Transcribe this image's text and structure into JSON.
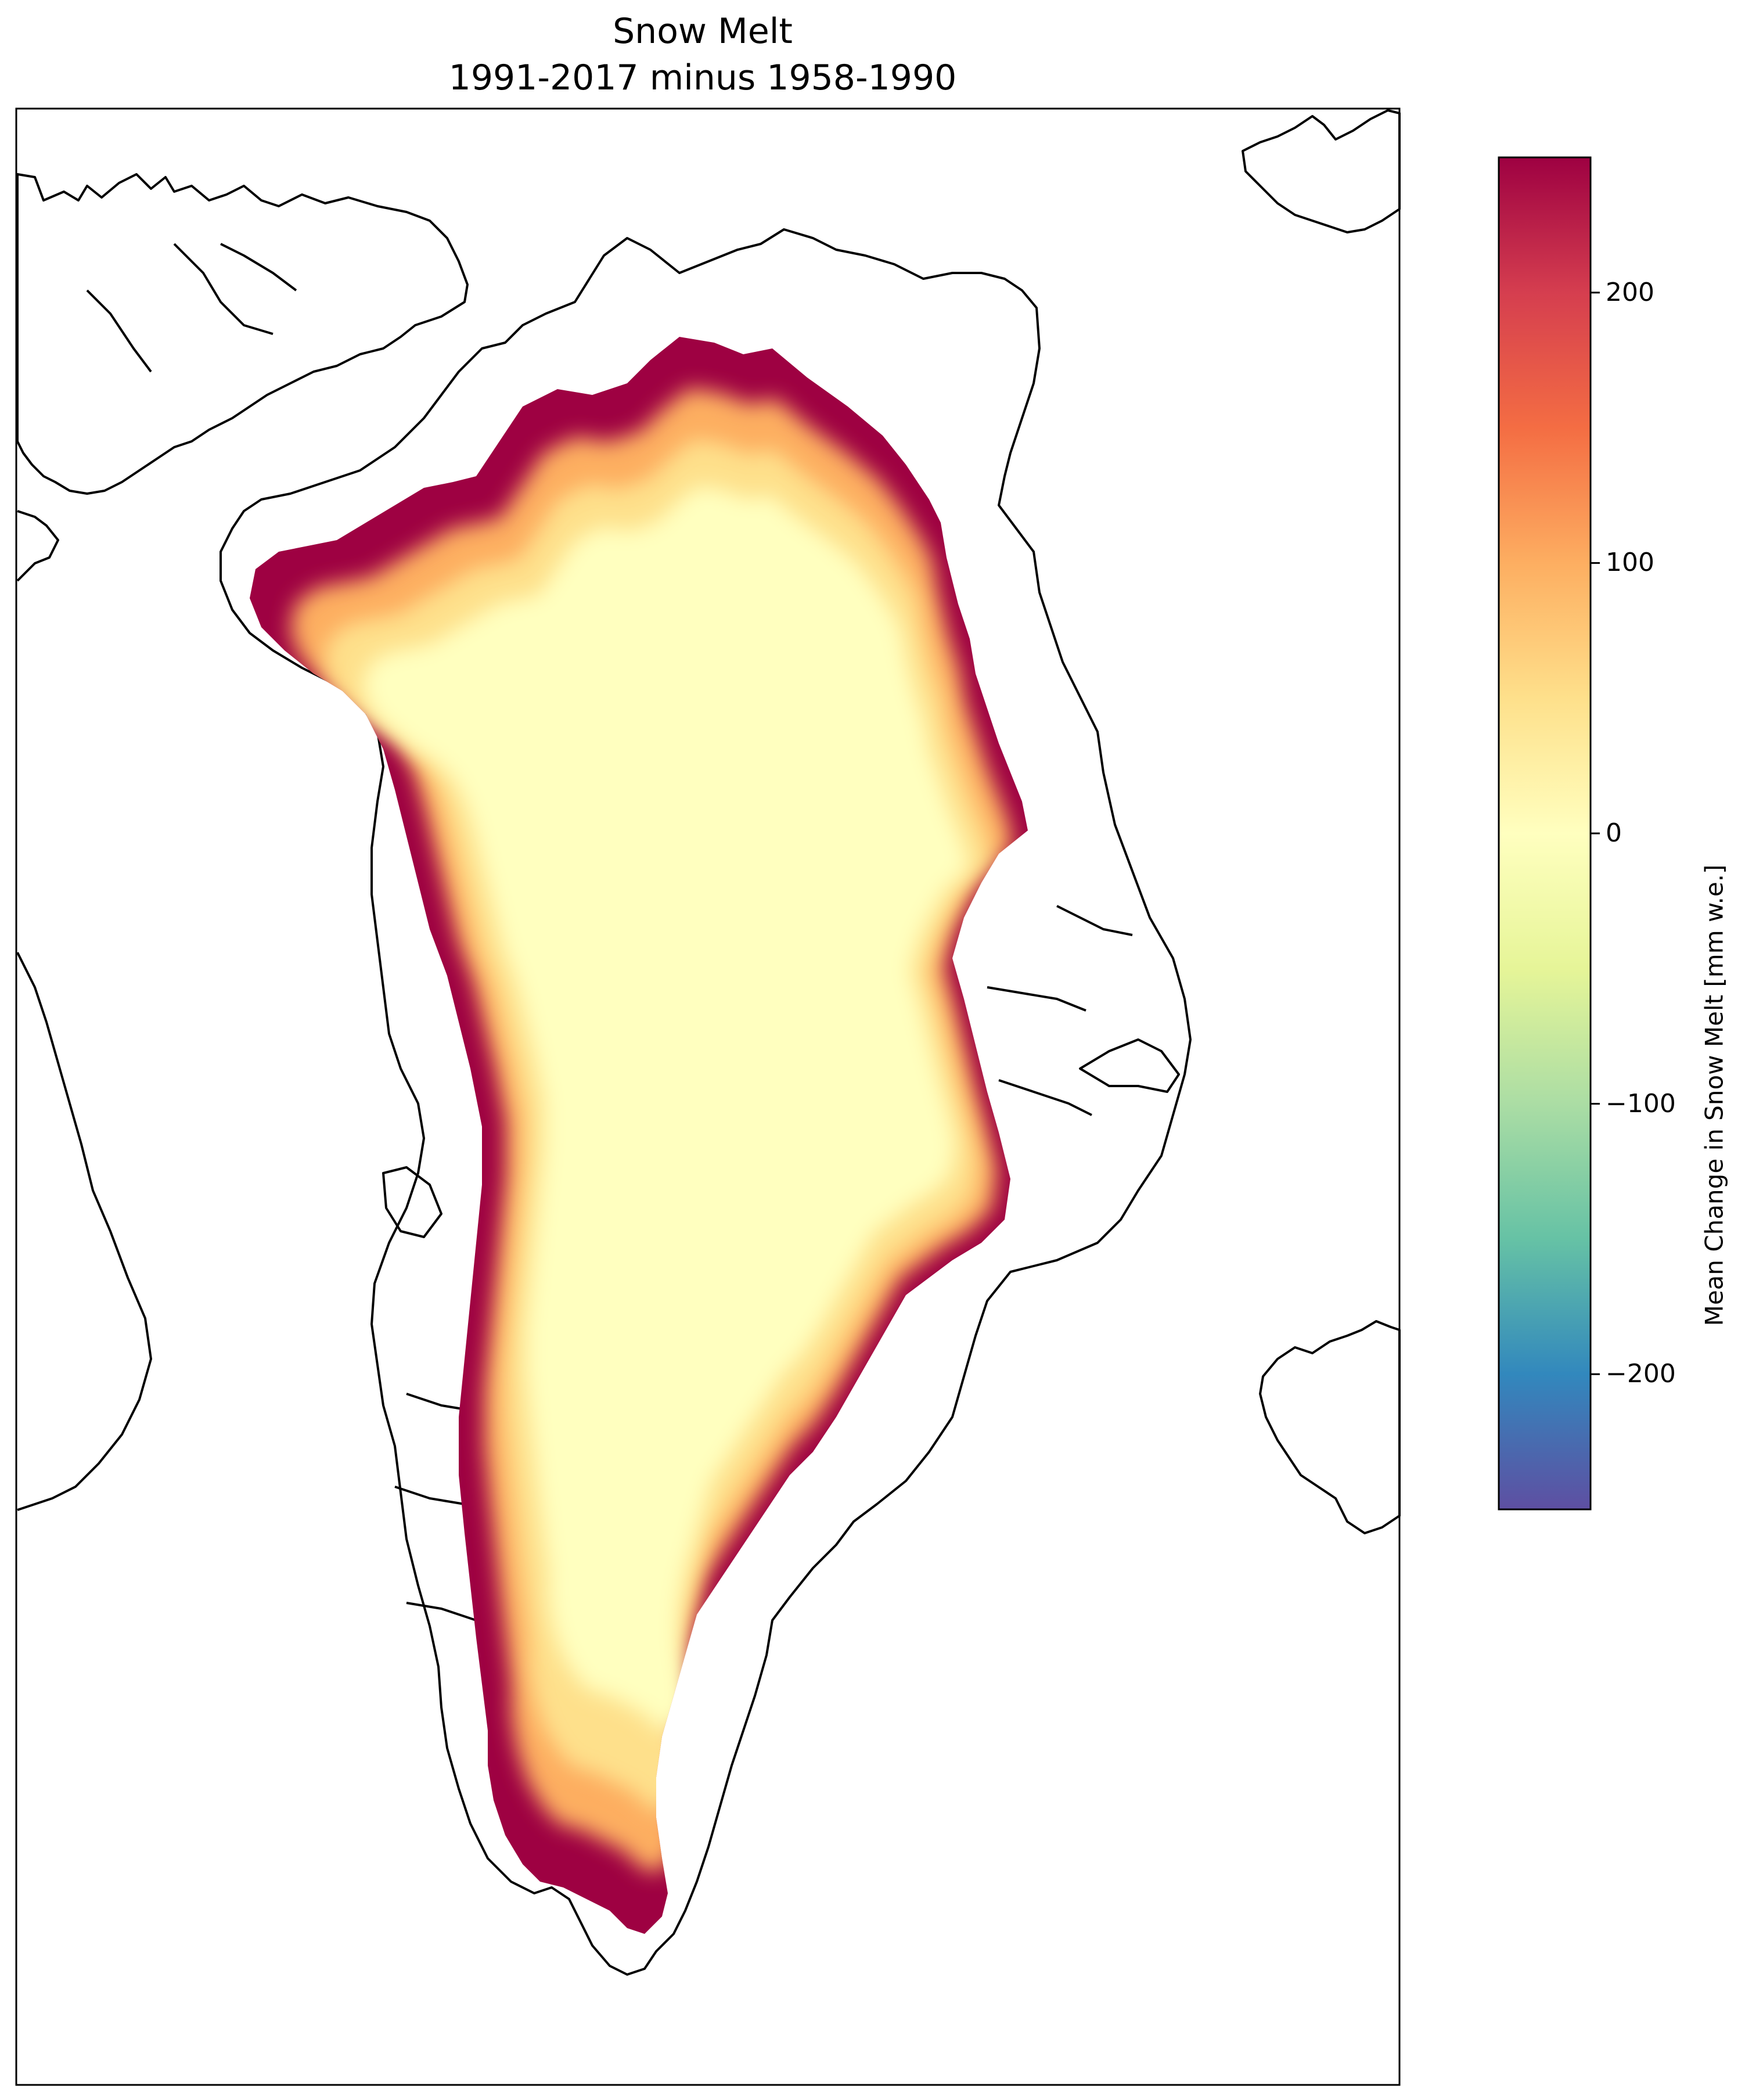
{
  "title": {
    "line1": "Snow Melt",
    "line2": "1991-2017 minus 1958-1990"
  },
  "colorbar": {
    "label": "Mean Change in Snow Melt [mm w.e.]",
    "colormap": "Spectral",
    "range": [
      -250,
      250
    ],
    "ticks": [
      200,
      100,
      0,
      -100,
      -200
    ],
    "tick_labels": [
      "200",
      "100",
      "0",
      "−100",
      "−200"
    ],
    "stops": [
      "#5e4fa2",
      "#3288bd",
      "#66c2a5",
      "#abdda4",
      "#e6f598",
      "#ffffbf",
      "#fee08b",
      "#fdae61",
      "#f46d43",
      "#d53e4f",
      "#9e0142"
    ]
  },
  "map": {
    "region": "Greenland",
    "field_colors": {
      "interior": "#ffffbf",
      "transition": "#fee08b",
      "orange": "#fdae61",
      "margin": "#9e0142"
    },
    "coastline_color": "#000000"
  }
}
